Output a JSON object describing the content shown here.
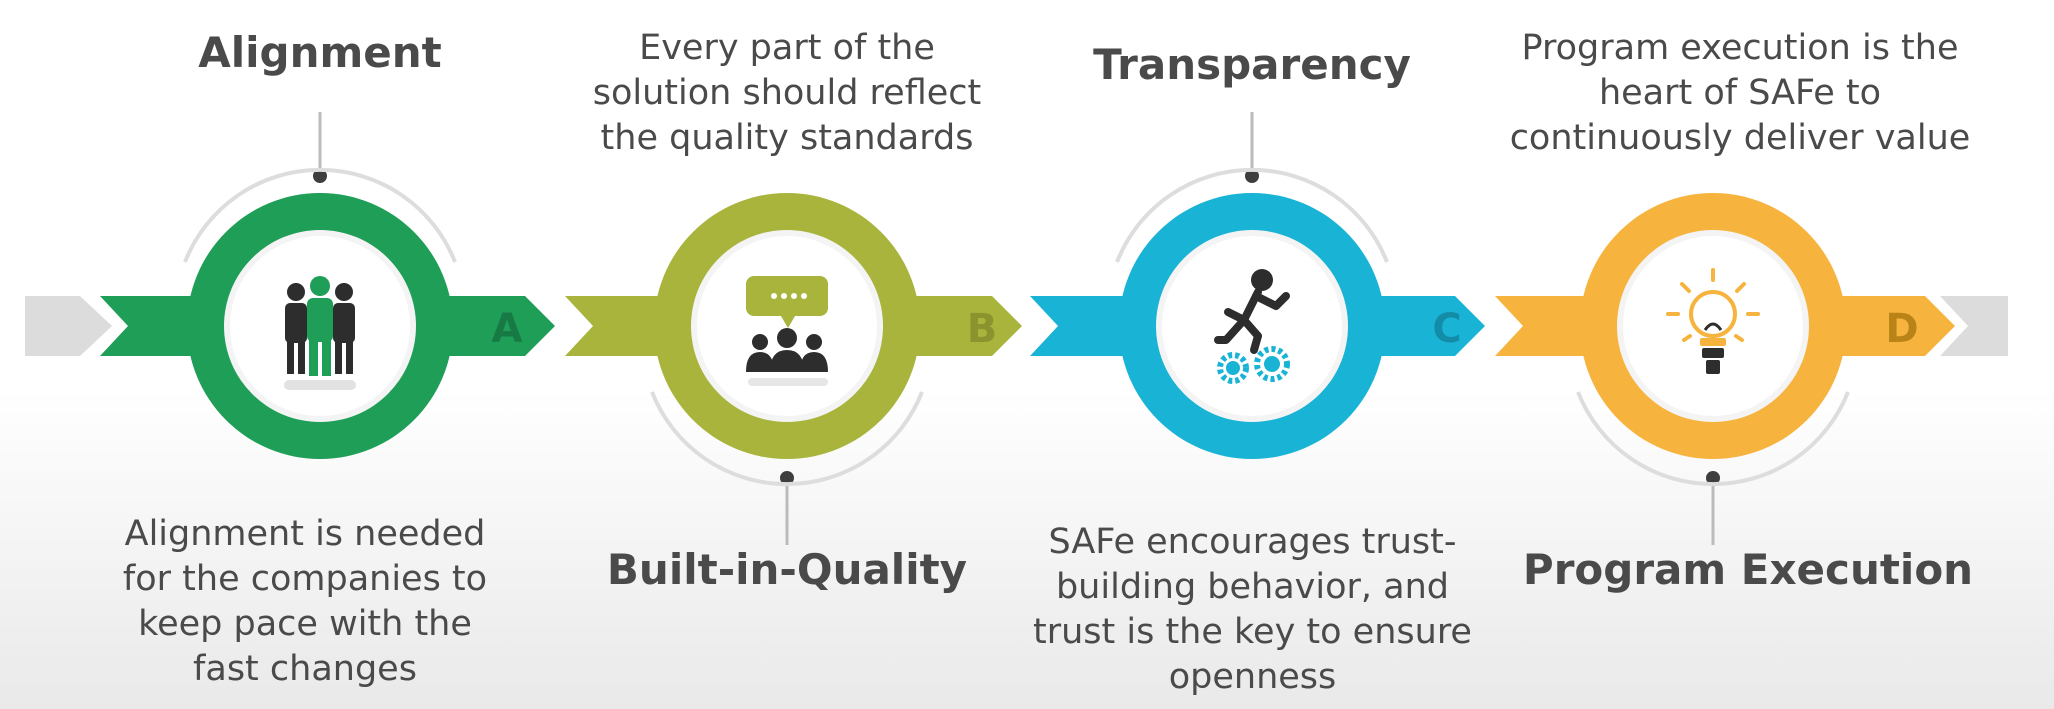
{
  "steps": [
    {
      "letter": "A",
      "title": "Alignment",
      "desc_lines": [
        "Alignment is needed",
        "for the companies to",
        "keep pace with the",
        "fast changes"
      ],
      "color": "#1f9e58",
      "icon": "team-icon"
    },
    {
      "letter": "B",
      "title": "Built-in-Quality",
      "desc_lines": [
        "Every part of the",
        "solution should reflect",
        "the quality standards"
      ],
      "color": "#a9b43c",
      "icon": "meeting-chat-icon"
    },
    {
      "letter": "C",
      "title": "Transparency",
      "desc_lines": [
        "SAFe encourages trust-",
        "building behavior, and",
        "trust is the key to ensure",
        "openness"
      ],
      "color": "#19b3d6",
      "icon": "running-person-gears-icon"
    },
    {
      "letter": "D",
      "title": "Program Execution",
      "desc_lines": [
        "Program execution is the",
        "heart of SAFe to",
        "continuously deliver value"
      ],
      "color": "#f6b43e",
      "icon": "lightbulb-icon"
    }
  ]
}
